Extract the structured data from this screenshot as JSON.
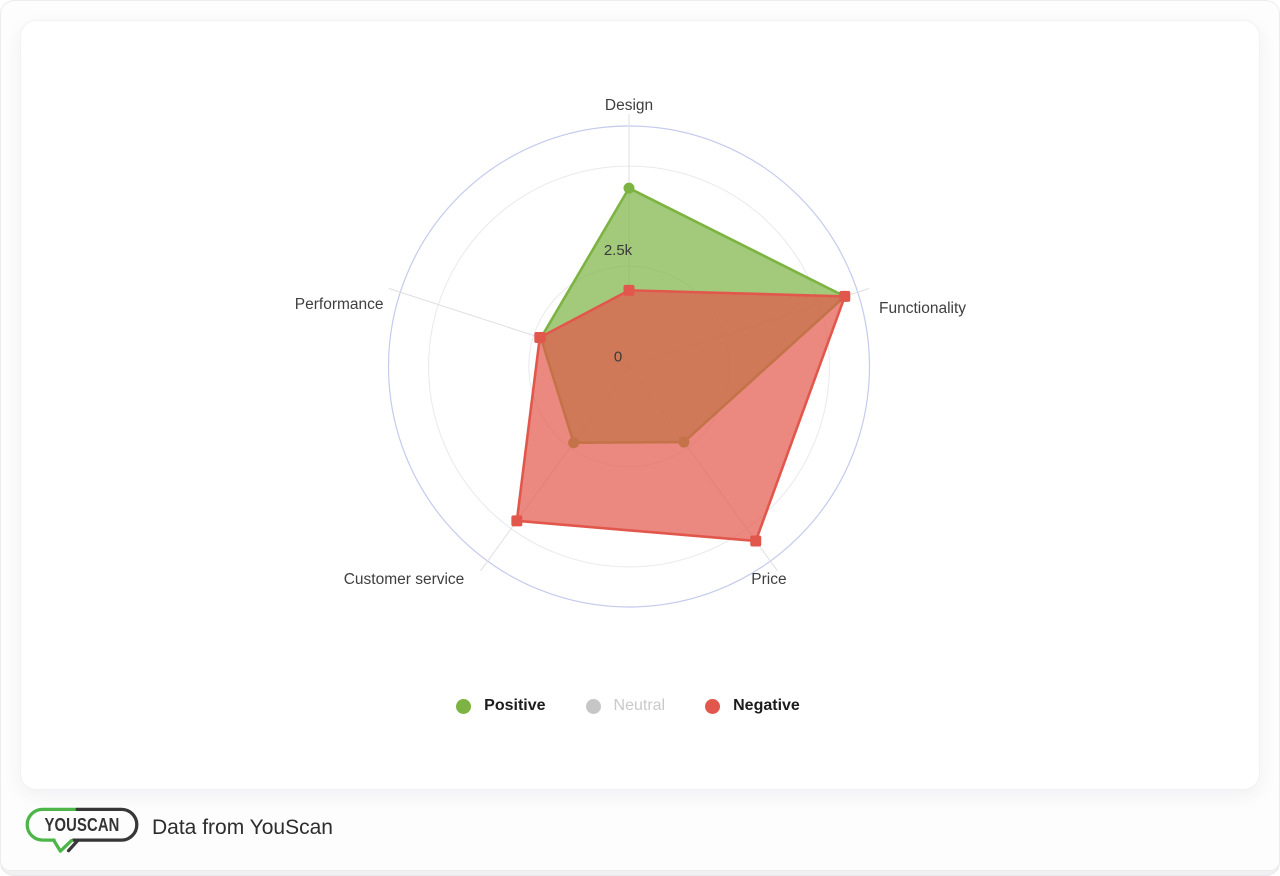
{
  "window": {
    "background": "#fdfdfd",
    "bottom_strip": "#f1f1f3",
    "card_background": "#ffffff"
  },
  "chart_data": {
    "type": "radar",
    "axes": [
      "Design",
      "Functionality",
      "Price",
      "Customer service",
      "Performance"
    ],
    "scale": {
      "min": 0,
      "max": 6000,
      "ring_values": [
        2500,
        5000
      ],
      "tick_labels": [
        {
          "label": "0",
          "value": 0
        },
        {
          "label": "2.5k",
          "value": 2500
        }
      ]
    },
    "series": [
      {
        "name": "Positive",
        "color": "#7CB342",
        "marker": "circle",
        "visible": true,
        "values": [
          4450,
          5660,
          2330,
          2350,
          2310
        ]
      },
      {
        "name": "Neutral",
        "color": "#C6C6C6",
        "marker": "circle",
        "visible": false,
        "values": null
      },
      {
        "name": "Negative",
        "color": "#E2574C",
        "marker": "square",
        "visible": true,
        "values": [
          1900,
          5660,
          5380,
          4760,
          2340
        ]
      }
    ],
    "grid": {
      "shape": "circle",
      "spoke_color": "#dfdfe4",
      "ring_color": "#e9e9ef",
      "outer_ring_color": "#c5cbec",
      "fill_opacity": 0.7
    },
    "legend_position": "bottom"
  },
  "legend": {
    "items": [
      {
        "label": "Positive",
        "color": "#7CB342",
        "active": true
      },
      {
        "label": "Neutral",
        "color": "#C6C6C6",
        "active": false
      },
      {
        "label": "Negative",
        "color": "#E2574C",
        "active": true
      }
    ]
  },
  "footer": {
    "logo_text": "YOUSCAN",
    "attribution": "Data from YouScan",
    "logo_green": "#4CB648",
    "logo_dark": "#373737"
  }
}
